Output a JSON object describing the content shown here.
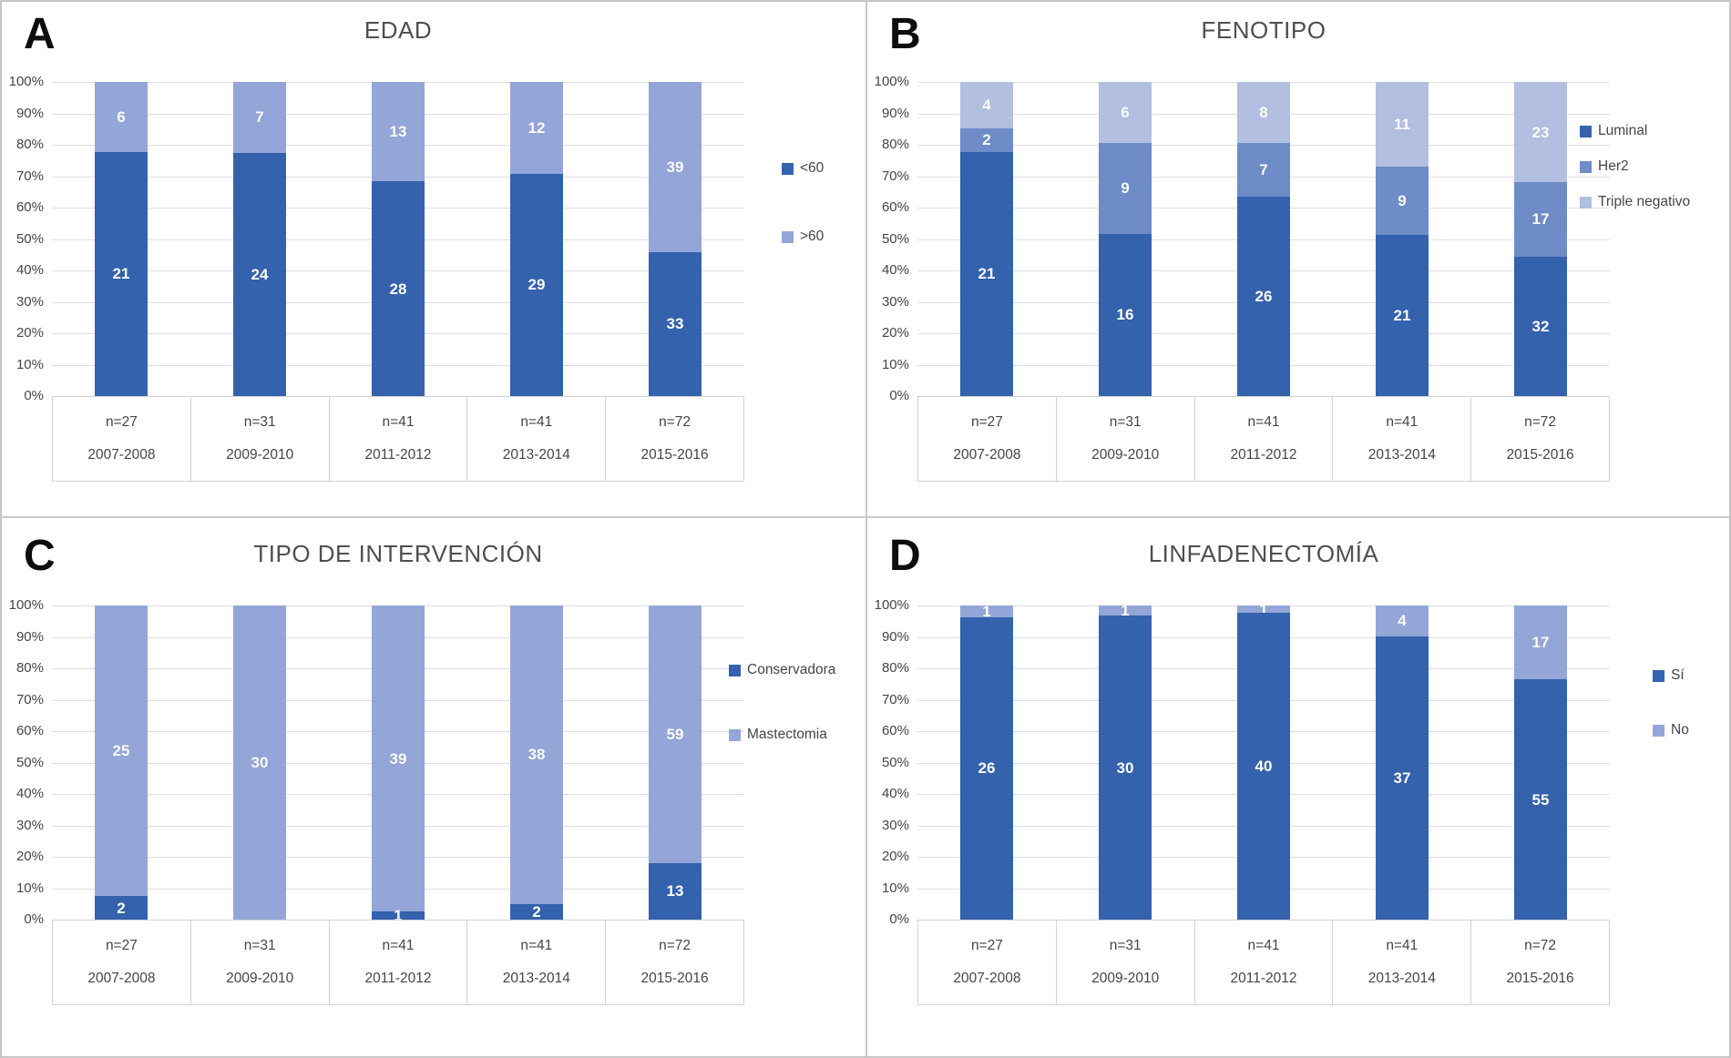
{
  "figure": {
    "panel_letters": [
      "A",
      "B",
      "C",
      "D"
    ]
  },
  "chart_data": [
    {
      "type": "bar",
      "stacked": true,
      "percent_axis": true,
      "panel_letter": "A",
      "title": "EDAD",
      "categories": [
        "n=27",
        "n=31",
        "n=41",
        "n=41",
        "n=72"
      ],
      "categories_years": [
        "2007-2008",
        "2009-2010",
        "2011-2012",
        "2013-2014",
        "2015-2016"
      ],
      "series": [
        {
          "name": "<60",
          "color": "#3462AD",
          "values": [
            21,
            24,
            28,
            29,
            33
          ]
        },
        {
          "name": ">60",
          "color": "#94A6D8",
          "values": [
            6,
            7,
            13,
            12,
            39
          ]
        }
      ],
      "yticks": [
        "0%",
        "10%",
        "20%",
        "30%",
        "40%",
        "50%",
        "60%",
        "70%",
        "80%",
        "90%",
        "100%"
      ],
      "ylim": [
        0,
        100
      ],
      "gridlines": true,
      "legend_position": "right"
    },
    {
      "type": "bar",
      "stacked": true,
      "percent_axis": true,
      "panel_letter": "B",
      "title": "FENOTIPO",
      "categories": [
        "n=27",
        "n=31",
        "n=41",
        "n=41",
        "n=72"
      ],
      "categories_years": [
        "2007-2008",
        "2009-2010",
        "2011-2012",
        "2013-2014",
        "2015-2016"
      ],
      "series": [
        {
          "name": "Luminal",
          "color": "#3462AD",
          "values": [
            21,
            16,
            26,
            21,
            32
          ]
        },
        {
          "name": "Her2",
          "color": "#6D8CC8",
          "values": [
            2,
            9,
            7,
            9,
            17
          ]
        },
        {
          "name": "Triple negativo",
          "color": "#B2BFE0",
          "values": [
            4,
            6,
            8,
            11,
            23
          ]
        }
      ],
      "yticks": [
        "0%",
        "10%",
        "20%",
        "30%",
        "40%",
        "50%",
        "60%",
        "70%",
        "80%",
        "90%",
        "100%"
      ],
      "ylim": [
        0,
        100
      ],
      "gridlines": true,
      "legend_position": "right"
    },
    {
      "type": "bar",
      "stacked": true,
      "percent_axis": true,
      "panel_letter": "C",
      "title": "TIPO DE INTERVENCIÓN",
      "categories": [
        "n=27",
        "n=31",
        "n=41",
        "n=41",
        "n=72"
      ],
      "categories_years": [
        "2007-2008",
        "2009-2010",
        "2011-2012",
        "2013-2014",
        "2015-2016"
      ],
      "series": [
        {
          "name": "Conservadora",
          "color": "#3462AD",
          "values": [
            2,
            0,
            1,
            2,
            13
          ]
        },
        {
          "name": "Mastectomia",
          "color": "#94A6D8",
          "values": [
            25,
            30,
            39,
            38,
            59
          ]
        }
      ],
      "yticks": [
        "0%",
        "10%",
        "20%",
        "30%",
        "40%",
        "50%",
        "60%",
        "70%",
        "80%",
        "90%",
        "100%"
      ],
      "ylim": [
        0,
        100
      ],
      "gridlines": true,
      "legend_position": "right"
    },
    {
      "type": "bar",
      "stacked": true,
      "percent_axis": true,
      "panel_letter": "D",
      "title": "LINFADENECTOMÍA",
      "categories": [
        "n=27",
        "n=31",
        "n=41",
        "n=41",
        "n=72"
      ],
      "categories_years": [
        "2007-2008",
        "2009-2010",
        "2011-2012",
        "2013-2014",
        "2015-2016"
      ],
      "series": [
        {
          "name": "Sí",
          "color": "#3462AD",
          "values": [
            26,
            30,
            40,
            37,
            55
          ]
        },
        {
          "name": "No",
          "color": "#94A6D8",
          "values": [
            1,
            1,
            1,
            4,
            17
          ]
        }
      ],
      "yticks": [
        "0%",
        "10%",
        "20%",
        "30%",
        "40%",
        "50%",
        "60%",
        "70%",
        "80%",
        "90%",
        "100%"
      ],
      "ylim": [
        0,
        100
      ],
      "gridlines": true,
      "legend_position": "right"
    }
  ]
}
